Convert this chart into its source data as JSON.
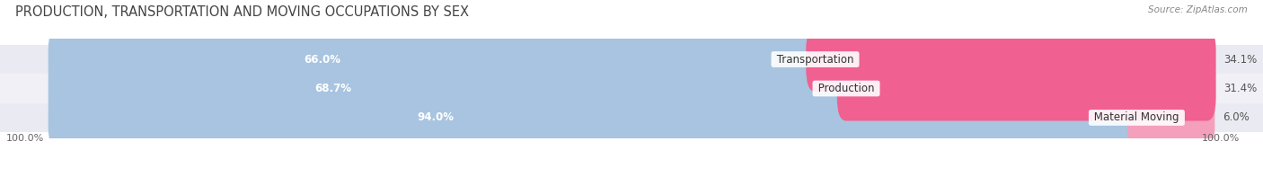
{
  "title": "PRODUCTION, TRANSPORTATION AND MOVING OCCUPATIONS BY SEX",
  "source": "Source: ZipAtlas.com",
  "categories": [
    "Material Moving",
    "Production",
    "Transportation"
  ],
  "male_values": [
    94.0,
    68.7,
    66.0
  ],
  "female_values": [
    6.0,
    31.4,
    34.1
  ],
  "male_color": "#a8c4e0",
  "female_color_light": "#f4a0bc",
  "female_color_dark": "#f06090",
  "row_colors": [
    "#eaeaf2",
    "#f0f0f6",
    "#eaeaf2"
  ],
  "legend_male_color": "#6ea8d8",
  "legend_female_color": "#f06090",
  "title_fontsize": 10.5,
  "source_fontsize": 7.5,
  "label_fontsize": 8.5,
  "tick_fontsize": 8,
  "category_fontsize": 8.5,
  "pct_label_fontsize": 8.5
}
